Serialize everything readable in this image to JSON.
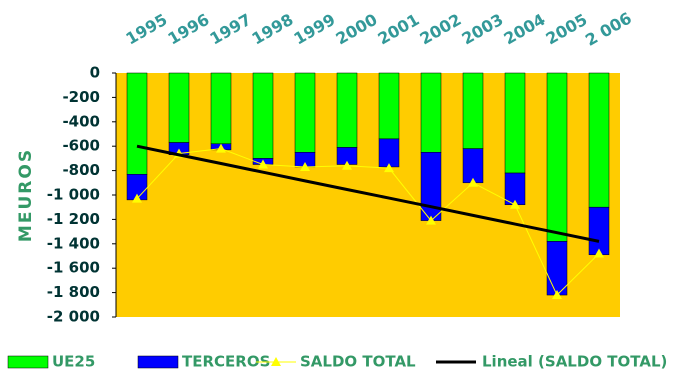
{
  "chart_data": {
    "type": "bar",
    "y_label": "MEUROS",
    "categories": [
      "1995",
      "1996",
      "1997",
      "1998",
      "1999",
      "2000",
      "2001",
      "2002",
      "2003",
      "2004",
      "2005",
      "2 006"
    ],
    "series": [
      {
        "name": "UE25",
        "type": "bar",
        "color": "#00ff00",
        "values": [
          -830,
          -570,
          -580,
          -700,
          -650,
          -610,
          -540,
          -650,
          -620,
          -820,
          -1380,
          -1100
        ]
      },
      {
        "name": "TERCEROS",
        "type": "bar",
        "color": "#0000ff",
        "values": [
          -210,
          -100,
          -50,
          -50,
          -120,
          -140,
          -230,
          -560,
          -280,
          -260,
          -440,
          -390
        ]
      },
      {
        "name": "SALDO TOTAL",
        "type": "line",
        "color": "#ffff00",
        "values": [
          -1030,
          -660,
          -620,
          -750,
          -770,
          -760,
          -780,
          -1210,
          -900,
          -1080,
          -1820,
          -1480
        ]
      },
      {
        "name": "Lineal (SALDO TOTAL)",
        "type": "line",
        "color": "#000000",
        "values": [
          -600,
          -671,
          -742,
          -813,
          -884,
          -955,
          -1025,
          -1096,
          -1167,
          -1238,
          -1309,
          -1380
        ]
      }
    ],
    "ylim": [
      -2000,
      0
    ],
    "yticks": [
      0,
      -200,
      -400,
      -600,
      -800,
      {
        "value": -1000,
        "label": "-1 000"
      },
      {
        "value": -1200,
        "label": "-1 200"
      },
      {
        "value": -1400,
        "label": "-1 400"
      },
      {
        "value": -1600,
        "label": "-1 600"
      },
      {
        "value": -1800,
        "label": "-1 800"
      },
      {
        "value": -2000,
        "label": "-2 000"
      }
    ],
    "plot_background": "#ffcc00"
  }
}
